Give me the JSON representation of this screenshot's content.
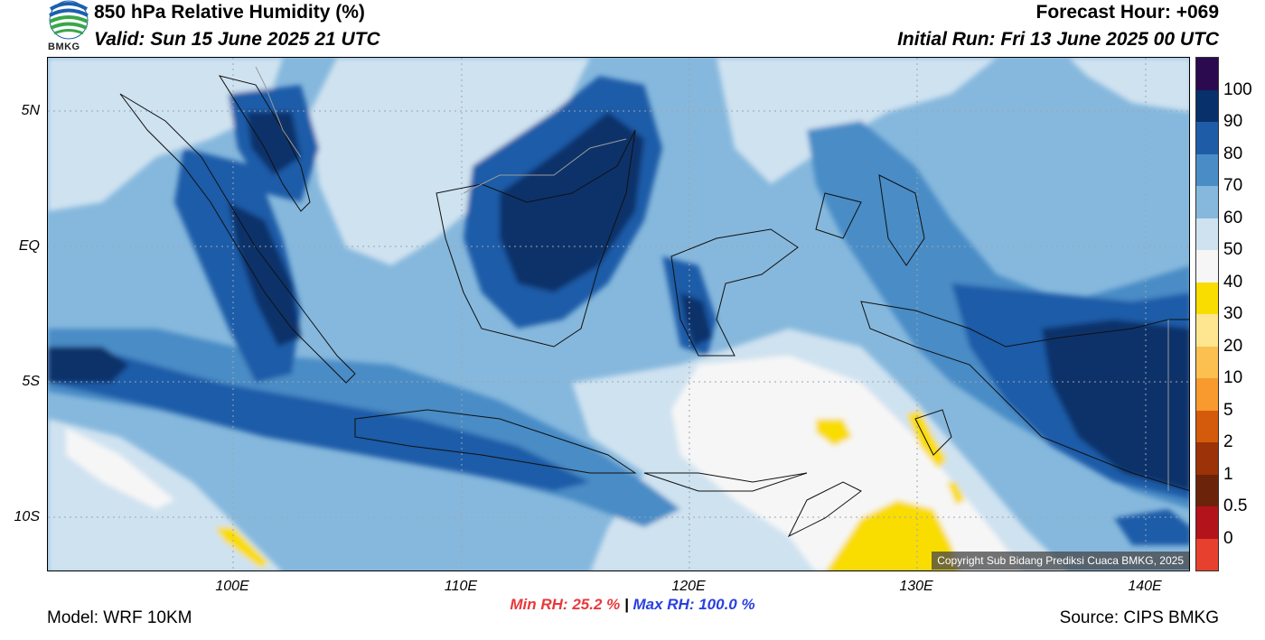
{
  "header": {
    "title": "850 hPa Relative Humidity (%)",
    "valid": "Valid: Sun 15 June 2025 21 UTC",
    "forecast_hour": "Forecast Hour: +069",
    "initial_run": "Initial Run: Fri 13 June 2025 00 UTC",
    "logo_text": "BMKG"
  },
  "axes": {
    "lat_labels": [
      "5N",
      "EQ",
      "5S",
      "10S"
    ],
    "lon_labels": [
      "100E",
      "110E",
      "120E",
      "130E",
      "140E"
    ]
  },
  "colorbar": {
    "labels": [
      "100",
      "90",
      "80",
      "70",
      "60",
      "50",
      "40",
      "30",
      "20",
      "10",
      "5",
      "2",
      "1",
      "0.5",
      "0"
    ],
    "colors": [
      "#2b0a4f",
      "#08306b",
      "#1f5ca8",
      "#4a8cc6",
      "#86b8dd",
      "#cfe2f0",
      "#f6f6f6",
      "#f9dc00",
      "#fde68f",
      "#fcc050",
      "#f89a2e",
      "#d45a0c",
      "#9c3208",
      "#6b240a",
      "#b3141c",
      "#e8402e"
    ]
  },
  "footer": {
    "min_rh": "Min RH:  25.2 %",
    "separator": "|",
    "max_rh": "Max RH: 100.0 %",
    "model": "Model: WRF 10KM",
    "source": "Source: CIPS BMKG",
    "copyright": "Copyright Sub Bidang Prediksi Cuaca BMKG, 2025"
  },
  "map_legend_colors": {
    "ocean_base": "#86b8dd",
    "darkest": "#08306b",
    "dark": "#1f5ca8",
    "mid": "#4a8cc6",
    "light": "#cfe2f0",
    "white": "#f6f6f6",
    "yellow": "#f9dc00"
  }
}
